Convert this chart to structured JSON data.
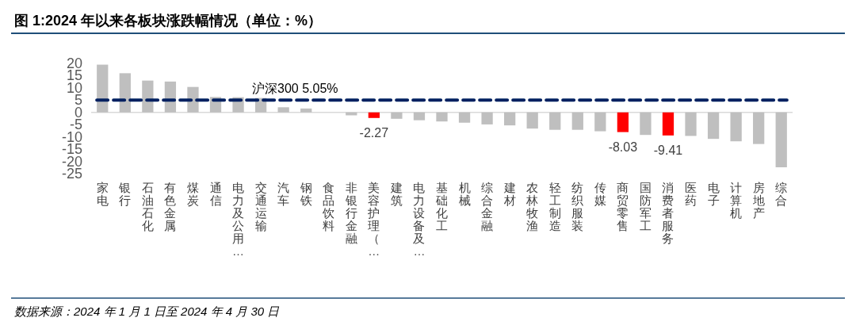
{
  "chart_data": {
    "type": "bar",
    "title": "图 1:2024 年以来各板块涨跌幅情况（单位：%）",
    "categories": [
      "家电",
      "银行",
      "石油石化",
      "有色金属",
      "煤炭",
      "通信",
      "电力及公用…",
      "交通运输",
      "汽车",
      "钢铁",
      "食品饮料",
      "非银行金融",
      "美容护理（…",
      "建筑",
      "电力设备及…",
      "基础化工",
      "机械",
      "综合金融",
      "建材",
      "农林牧渔",
      "轻工制造",
      "纺织服装",
      "传媒",
      "商贸零售",
      "国防军工",
      "消费者服务",
      "医药",
      "电子",
      "计算机",
      "房地产",
      "综合"
    ],
    "values": [
      19.5,
      16.0,
      13.0,
      12.6,
      10.4,
      6.3,
      6.2,
      5.9,
      2.1,
      1.6,
      0,
      -1.2,
      -2.27,
      -2.6,
      -3.2,
      -3.7,
      -4.2,
      -4.9,
      -5.3,
      -6.6,
      -7.1,
      -7.1,
      -7.7,
      -8.03,
      -9.2,
      -9.41,
      -9.6,
      -10.8,
      -11.8,
      -12.9,
      -22.4
    ],
    "colors": [
      "#bfbfbf",
      "#bfbfbf",
      "#bfbfbf",
      "#bfbfbf",
      "#bfbfbf",
      "#bfbfbf",
      "#bfbfbf",
      "#bfbfbf",
      "#bfbfbf",
      "#bfbfbf",
      "#bfbfbf",
      "#bfbfbf",
      "#ff0000",
      "#bfbfbf",
      "#bfbfbf",
      "#bfbfbf",
      "#bfbfbf",
      "#bfbfbf",
      "#bfbfbf",
      "#bfbfbf",
      "#bfbfbf",
      "#bfbfbf",
      "#bfbfbf",
      "#ff0000",
      "#bfbfbf",
      "#ff0000",
      "#bfbfbf",
      "#bfbfbf",
      "#bfbfbf",
      "#bfbfbf",
      "#bfbfbf"
    ],
    "value_labels": [
      null,
      null,
      null,
      null,
      null,
      null,
      null,
      null,
      null,
      null,
      null,
      null,
      "-2.27",
      null,
      null,
      null,
      null,
      null,
      null,
      null,
      null,
      null,
      null,
      "-8.03",
      null,
      "-9.41",
      null,
      null,
      null,
      null,
      null
    ],
    "ylim": [
      -25,
      20
    ],
    "yticks": [
      20,
      15,
      10,
      5,
      0,
      -5,
      -10,
      -15,
      -20,
      -25
    ],
    "ref_lines": [
      {
        "axis": "y",
        "value": 5.05,
        "label": "沪深300 5.05%",
        "color": "#002060",
        "line_style": "dashed"
      }
    ],
    "annotations": [
      "数据来源：2024 年 1 月 1 日至 2024 年 4 月 30 日"
    ]
  }
}
